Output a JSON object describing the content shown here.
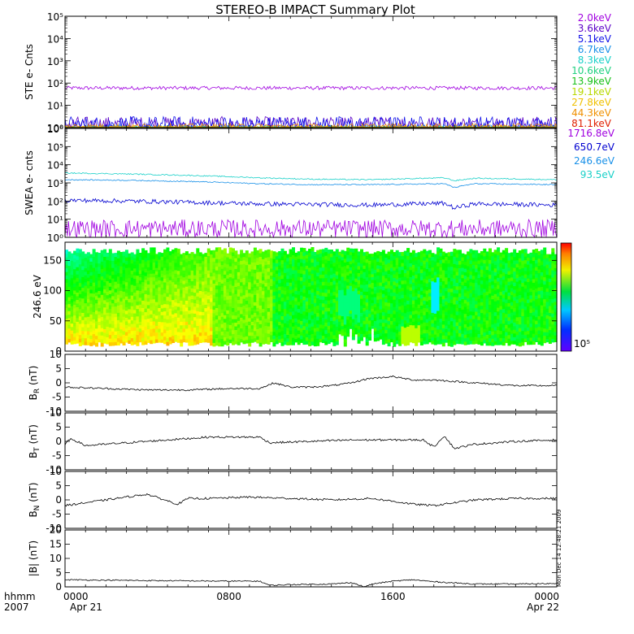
{
  "chart_data": [
    {
      "type": "line",
      "title": "STEREO-B IMPACT Summary Plot",
      "ylabel": "STE e- Cnts",
      "yscale": "log",
      "ylim": [
        1,
        100000
      ],
      "ytick_labels": [
        "10⁰",
        "10¹",
        "10²",
        "10³",
        "10⁴",
        "10⁵"
      ],
      "xlim": [
        0,
        24
      ],
      "series": [
        {
          "name": "2.0keV",
          "color": "#a000e0",
          "level": 60,
          "noise": 0.08
        },
        {
          "name": "3.6keV",
          "color": "#5a00c8",
          "level": 1.4,
          "noise": 0.35
        },
        {
          "name": "5.1keV",
          "color": "#1010e8",
          "level": 1.3,
          "noise": 0.4
        },
        {
          "name": "6.7keV",
          "color": "#1890e8",
          "level": 1.05,
          "noise": 0.1
        },
        {
          "name": "8.3keV",
          "color": "#18d0c8",
          "level": 1.02,
          "noise": 0.05
        },
        {
          "name": "10.6keV",
          "color": "#20d080",
          "level": 1.01,
          "noise": 0.04
        },
        {
          "name": "13.9keV",
          "color": "#18c018",
          "level": 1.01,
          "noise": 0.03
        },
        {
          "name": "19.1keV",
          "color": "#b8d800",
          "level": 1.02,
          "noise": 0.04
        },
        {
          "name": "27.8keV",
          "color": "#f0c000",
          "level": 1.03,
          "noise": 0.05
        },
        {
          "name": "44.3keV",
          "color": "#f09000",
          "level": 1.15,
          "noise": 0.12
        },
        {
          "name": "81.1keV",
          "color": "#e02000",
          "level": 1.0,
          "noise": 0.0
        }
      ]
    },
    {
      "type": "line",
      "ylabel": "SWEA e- cnts",
      "yscale": "log",
      "ylim": [
        1,
        1000000
      ],
      "ytick_labels": [
        "10⁰",
        "10¹",
        "10²",
        "10³",
        "10⁴",
        "10⁵",
        "10⁶"
      ],
      "xlim": [
        0,
        24
      ],
      "series": [
        {
          "name": "1716.8eV",
          "color": "#a000e0",
          "x": [
            0,
            24
          ],
          "y": [
            3,
            3
          ],
          "noise": 0.5
        },
        {
          "name": "650.7eV",
          "color": "#0000d0",
          "x": [
            0,
            3,
            6,
            9.5,
            12,
            15,
            18.5,
            19,
            20,
            24
          ],
          "y": [
            110,
            100,
            85,
            70,
            65,
            60,
            75,
            40,
            70,
            60
          ],
          "noise": 0.12
        },
        {
          "name": "246.6eV",
          "color": "#1890e8",
          "x": [
            0,
            3,
            6,
            9.5,
            12,
            15,
            18.5,
            19,
            20,
            24
          ],
          "y": [
            1500,
            1400,
            1200,
            900,
            800,
            800,
            900,
            550,
            900,
            800
          ],
          "noise": 0.03
        },
        {
          "name": "93.5eV",
          "color": "#18d0c8",
          "x": [
            0,
            3,
            6,
            9.5,
            12,
            15,
            18.5,
            19,
            20,
            24
          ],
          "y": [
            3500,
            3100,
            2600,
            1900,
            1600,
            1500,
            1900,
            1300,
            1800,
            1500
          ],
          "noise": 0.03
        }
      ]
    },
    {
      "type": "heatmap",
      "ylabel": "246.6 eV",
      "ylim": [
        0,
        180
      ],
      "yticks": [
        0,
        50,
        100,
        150
      ],
      "xlim": [
        0,
        24
      ],
      "colorbar_label": "10⁵"
    },
    {
      "type": "line",
      "ylabel": "B_R (nT)",
      "ylabel_main": "B",
      "ylabel_sub": "R",
      "ylabel_unit": "(nT)",
      "ylim": [
        -10,
        10
      ],
      "yticks": [
        -10,
        -5,
        0,
        5,
        10
      ],
      "xlim": [
        0,
        24
      ],
      "series": [
        {
          "color": "#000000",
          "x": [
            0,
            2,
            4,
            6,
            8,
            9.5,
            10.2,
            11,
            12,
            13,
            14,
            14.8,
            16,
            17,
            18,
            20,
            22,
            24
          ],
          "y": [
            -1.5,
            -2,
            -2.5,
            -2.5,
            -2,
            -2,
            0,
            -1.5,
            -1.5,
            -1,
            0,
            1.5,
            2.2,
            1,
            1,
            0,
            -1,
            -1
          ],
          "noise": 0.3
        }
      ]
    },
    {
      "type": "line",
      "ylabel": "B_T (nT)",
      "ylabel_main": "B",
      "ylabel_sub": "T",
      "ylabel_unit": "(nT)",
      "ylim": [
        -10,
        10
      ],
      "yticks": [
        -10,
        -5,
        0,
        5,
        10
      ],
      "xlim": [
        0,
        24
      ],
      "series": [
        {
          "color": "#000000",
          "x": [
            0,
            0.3,
            1,
            3,
            5,
            7,
            9.5,
            10,
            12,
            14,
            16,
            17.5,
            18,
            18.5,
            19,
            20,
            22,
            24
          ],
          "y": [
            -1,
            1,
            -1.5,
            -0.5,
            0.5,
            1.5,
            1.5,
            -0.5,
            0,
            0.5,
            0.5,
            0.5,
            -2,
            2,
            -2.5,
            -1,
            0,
            0.5
          ],
          "noise": 0.35
        }
      ]
    },
    {
      "type": "line",
      "ylabel": "B_N (nT)",
      "ylabel_main": "B",
      "ylabel_sub": "N",
      "ylabel_unit": "(nT)",
      "ylim": [
        -10,
        10
      ],
      "yticks": [
        -10,
        -5,
        0,
        5,
        10
      ],
      "xlim": [
        0,
        24
      ],
      "series": [
        {
          "color": "#000000",
          "x": [
            0,
            2,
            4,
            5.5,
            6,
            7,
            9,
            11,
            13,
            15,
            17,
            18,
            20,
            22,
            24
          ],
          "y": [
            -2,
            0,
            2,
            -1.5,
            0.5,
            0.5,
            1,
            0.5,
            0,
            0.5,
            -1.5,
            -2,
            0,
            0.5,
            0.5
          ],
          "noise": 0.35
        }
      ]
    },
    {
      "type": "line",
      "ylabel": "|B| (nT)",
      "ylim": [
        0,
        20
      ],
      "yticks": [
        0,
        5,
        10,
        15,
        20
      ],
      "xlim": [
        0,
        24
      ],
      "series": [
        {
          "color": "#000000",
          "x": [
            0,
            4,
            8,
            9.5,
            10,
            11,
            13,
            14,
            14.6,
            15,
            16,
            17,
            18,
            20,
            22,
            24
          ],
          "y": [
            2.5,
            2.2,
            2,
            2,
            0.5,
            0.8,
            1,
            1.5,
            0,
            1,
            2,
            2.5,
            1.8,
            1,
            1,
            1.2
          ],
          "noise": 0.2
        }
      ]
    }
  ],
  "x_axis": {
    "corner_label_top": "hhmm",
    "corner_label_bottom": "2007",
    "ticks": [
      {
        "x": 0,
        "time": "0000",
        "date": "Apr 21"
      },
      {
        "x": 8,
        "time": "0800",
        "date": ""
      },
      {
        "x": 16,
        "time": "1600",
        "date": ""
      },
      {
        "x": 24,
        "time": "0000",
        "date": "Apr 22"
      }
    ]
  },
  "timestamp": "Mon Dec 14 12:48:21 2009",
  "colors": {
    "axis": "#000000",
    "background": "#ffffff"
  }
}
